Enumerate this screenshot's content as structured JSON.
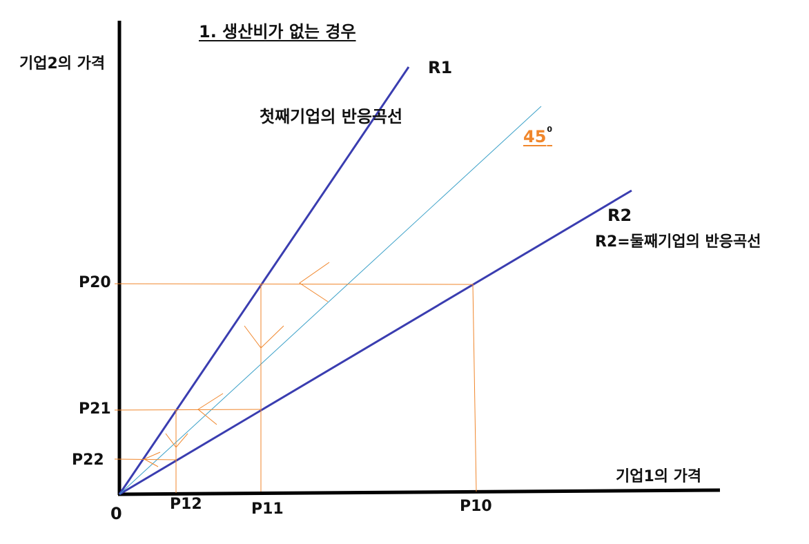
{
  "title": "1. 생산비가 없는 경우",
  "axis_labels": {
    "y": "기업2의 가격",
    "x": "기업1의 가격",
    "origin": "0"
  },
  "curves": {
    "r1_label": "R1",
    "r1_desc": "첫째기업의 반응곡선",
    "r2_label": "R2",
    "r2_desc": "R2=둘째기업의 반응곡선",
    "diag_label": "45",
    "diag_sup": "0"
  },
  "points": {
    "p20": "P20",
    "p21": "P21",
    "p22": "P22",
    "p10": "P10",
    "p11": "P11",
    "p12": "P12"
  },
  "colors": {
    "axis": "#000000",
    "reaction_curve": "#3a3db0",
    "diagonal": "#3aa0c8",
    "guide": "#f0862b",
    "text": "#111111"
  }
}
